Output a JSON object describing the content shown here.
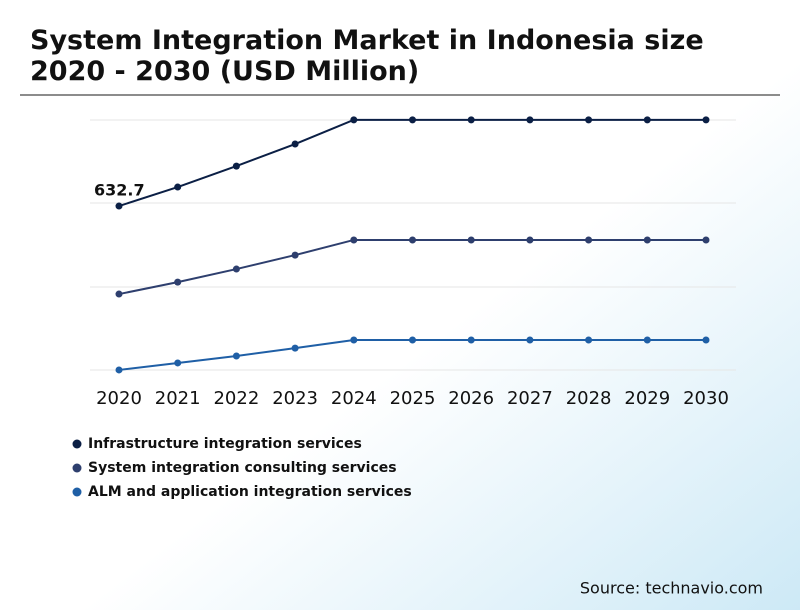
{
  "chart_data": {
    "type": "line",
    "title": "System Integration Market in Indonesia size 2020 - 2030 (USD Million)",
    "categories": [
      "2020",
      "2021",
      "2022",
      "2023",
      "2024",
      "2025",
      "2026",
      "2027",
      "2028",
      "2029",
      "2030"
    ],
    "series": [
      {
        "name": "Infrastructure integration services",
        "color": "#0b1f45",
        "values": [
          632.7,
          698,
          770,
          846,
          929,
          929,
          929,
          929,
          929,
          929,
          929
        ]
      },
      {
        "name": "System integration consulting services",
        "color": "#2e3f6e",
        "values": [
          330,
          371,
          416,
          464,
          516,
          516,
          516,
          516,
          516,
          516,
          516
        ]
      },
      {
        "name": "ALM and application integration services",
        "color": "#1f5fa6",
        "values": [
          69,
          93,
          117,
          144,
          172,
          172,
          172,
          172,
          172,
          172,
          172
        ]
      }
    ],
    "ylim": [
      0,
      963
    ],
    "source": "Source: technavio.com"
  }
}
